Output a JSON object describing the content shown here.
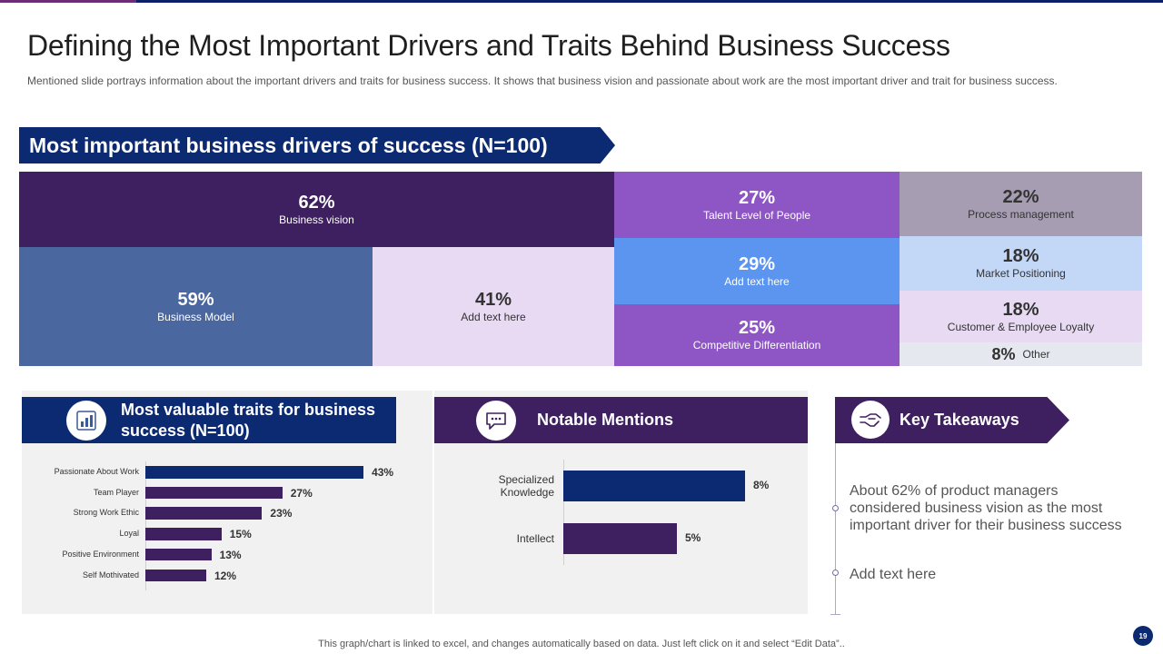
{
  "slide": {
    "title": "Defining the Most Important Drivers and Traits Behind Business Success",
    "subtitle": "Mentioned slide portrays information about the important drivers  and traits for business success. It shows that business vision and passionate about work are the most important driver  and trait for business success.",
    "footer": "This graph/chart is linked to excel,  and changes automatically based on data. Just left click on it and select “Edit Data”..",
    "page_number": "19"
  },
  "colors": {
    "navy": "#0b2a72",
    "deep_purple": "#3e2060",
    "violet": "#8e55c4",
    "blue": "#5b95ef",
    "steel_blue": "#4a67a0",
    "lavender": "#e7daf2",
    "mauve": "#a69db3",
    "light_blue": "#c3d7f7",
    "light_gray": "#e6e8ef"
  },
  "treemap": {
    "title": "Most important business drivers of success (N=100)",
    "tiles": [
      {
        "pct": "62%",
        "label": "Business vision"
      },
      {
        "pct": "59%",
        "label": "Business Model"
      },
      {
        "pct": "41%",
        "label": "Add text here"
      },
      {
        "pct": "27%",
        "label": "Talent Level  of People"
      },
      {
        "pct": "29%",
        "label": "Add text here"
      },
      {
        "pct": "25%",
        "label": "Competitive  Differentiation"
      },
      {
        "pct": "22%",
        "label": "Process management"
      },
      {
        "pct": "18%",
        "label": "Market Positioning"
      },
      {
        "pct": "18%",
        "label": "Customer & Employee Loyalty"
      },
      {
        "pct": "8%",
        "label": "Other"
      }
    ]
  },
  "traits": {
    "title_line1": "Most valuable traits for business",
    "title_line2": "success  (N=100)",
    "icon": "chart-report-icon"
  },
  "mentions": {
    "title": "Notable Mentions",
    "icon": "speech-bubble-icon"
  },
  "takeaways": {
    "title": "Key Takeaways",
    "icon": "handshake-icon",
    "items": [
      "About 62% of product managers considered business vision as the most important driver for their business success",
      "Add text here"
    ]
  },
  "chart_data": [
    {
      "type": "treemap",
      "title": "Most important business drivers of success (N=100)",
      "categories": [
        "Business vision",
        "Business Model",
        "Add text here",
        "Talent Level  of People",
        "Add text here",
        "Competitive  Differentiation",
        "Process management",
        "Market Positioning",
        "Customer & Employee Loyalty",
        "Other"
      ],
      "values": [
        62,
        59,
        41,
        27,
        29,
        25,
        22,
        18,
        18,
        8
      ],
      "unit": "%"
    },
    {
      "type": "bar",
      "orientation": "horizontal",
      "title": "Most valuable traits for business success  (N=100)",
      "categories": [
        "Passionate About Work",
        "Team Player",
        "Strong Work Ethic",
        "Loyal",
        "Positive Environment",
        "Self Mothivated"
      ],
      "values": [
        43,
        27,
        23,
        15,
        13,
        12
      ],
      "labels": [
        "43%",
        "27%",
        "23%",
        "15%",
        "13%",
        "12%"
      ],
      "bar_color": "#3e2060",
      "first_bar_color": "#0b2a72",
      "xlim": [
        0,
        48
      ]
    },
    {
      "type": "bar",
      "orientation": "horizontal",
      "title": "Notable Mentions",
      "categories": [
        "Specialized Knowledge",
        "Intellect"
      ],
      "values": [
        8,
        5
      ],
      "labels": [
        "8%",
        "5%"
      ],
      "bar_colors": [
        "#0b2a72",
        "#3e2060"
      ],
      "xlim": [
        0,
        10
      ]
    }
  ]
}
